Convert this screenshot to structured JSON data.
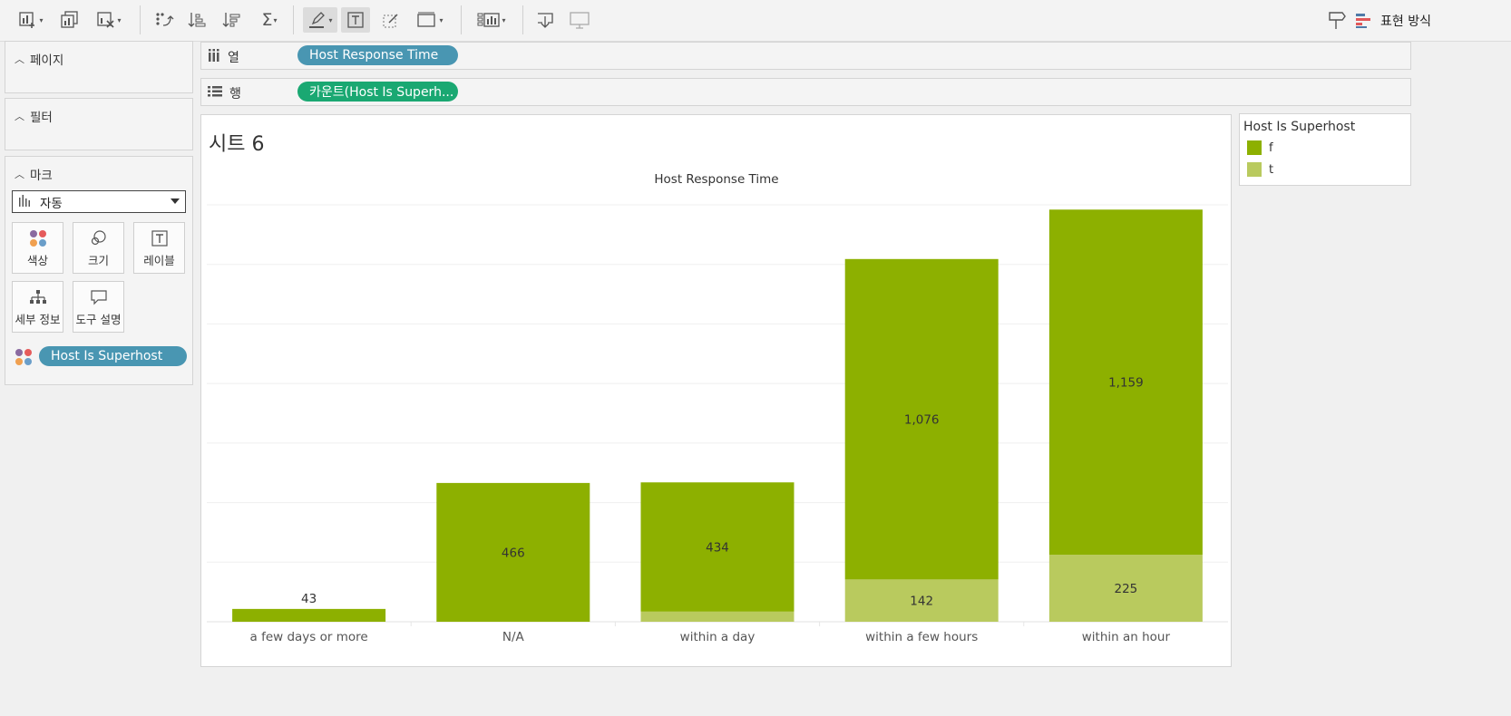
{
  "toolbar": {
    "icons": [
      "add-sheet-icon",
      "duplicate-icon",
      "clear-sheet-icon",
      "swap-icon",
      "sort-asc-icon",
      "sort-desc-icon",
      "sum-icon",
      "highlight-icon",
      "label-icon",
      "annotate-icon",
      "fit-icon",
      "show-cards-icon",
      "download-icon",
      "presentation-icon",
      "pin-icon",
      "show-me-icon"
    ],
    "show_me_label": "표현 방식"
  },
  "cards": {
    "pages_title": "페이지",
    "filters_title": "필터",
    "marks_title": "마크",
    "mark_type": "자동",
    "buttons": {
      "color": "색상",
      "size": "크기",
      "label": "레이블",
      "detail": "세부 정보",
      "tooltip": "도구 설명"
    },
    "color_pill": "Host Is Superhost"
  },
  "shelves": {
    "columns_label": "열",
    "columns_pill": "Host Response Time",
    "rows_label": "행",
    "rows_pill": "카운트(Host Is Superh..."
  },
  "sheet": {
    "title": "시트 6"
  },
  "legend": {
    "title": "Host Is Superhost",
    "items": [
      {
        "label": "f",
        "color": "#8db000"
      },
      {
        "label": "t",
        "color": "#b9ca5e"
      }
    ]
  },
  "colors": {
    "columns_pill": "#4996b2",
    "rows_pill": "#1aa872",
    "color_pill": "#4996b2"
  },
  "chart_data": {
    "type": "bar",
    "stacked": true,
    "title": "Host Response Time",
    "categories": [
      "a few days or more",
      "N/A",
      "within a day",
      "within a few hours",
      "within an hour"
    ],
    "series": [
      {
        "name": "f",
        "color": "#8db000",
        "values": [
          43,
          466,
          434,
          1076,
          1159
        ],
        "labels": [
          "43",
          "466",
          "434",
          "1,076",
          "1,159"
        ]
      },
      {
        "name": "t",
        "color": "#b9ca5e",
        "values": [
          0,
          0,
          34,
          142,
          225
        ],
        "labels": [
          "",
          "",
          "",
          "142",
          "225"
        ]
      }
    ],
    "ylim": [
      0,
      1400
    ],
    "grid": true
  }
}
